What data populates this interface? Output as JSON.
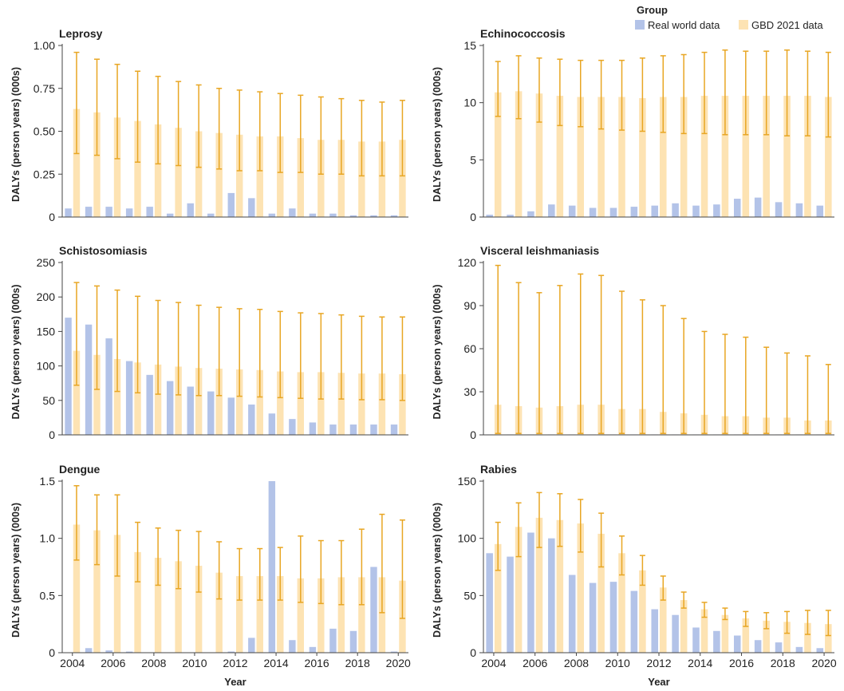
{
  "colors": {
    "real": "#b3c3e8",
    "gbd": "#fde3b3",
    "error": "#e8a623",
    "axis": "#444444"
  },
  "legend": {
    "title": "Group",
    "real_label": "Real world data",
    "gbd_label": "GBD 2021 data"
  },
  "chart_data": [
    {
      "type": "bar",
      "title": "Leprosy",
      "xlabel": "",
      "ylabel": "DALYs (person years) (000s)",
      "ylim": [
        0,
        1.0
      ],
      "yticks": [
        0,
        0.25,
        0.5,
        0.75,
        1.0
      ],
      "ytick_labels": [
        "0",
        "0.25",
        "0.50",
        "0.75",
        "1.00"
      ],
      "categories": [
        2004,
        2005,
        2006,
        2007,
        2008,
        2009,
        2010,
        2011,
        2012,
        2013,
        2014,
        2015,
        2016,
        2017,
        2018,
        2019,
        2020
      ],
      "xtick_labels": [],
      "series": [
        {
          "name": "Real world data",
          "values": [
            0.05,
            0.06,
            0.06,
            0.05,
            0.06,
            0.02,
            0.08,
            0.02,
            0.14,
            0.11,
            0.02,
            0.05,
            0.02,
            0.02,
            0.01,
            0.01,
            0.01
          ]
        },
        {
          "name": "GBD 2021 data",
          "values": [
            0.63,
            0.61,
            0.58,
            0.56,
            0.54,
            0.52,
            0.5,
            0.49,
            0.48,
            0.47,
            0.47,
            0.46,
            0.45,
            0.45,
            0.44,
            0.44,
            0.45
          ],
          "lower": [
            0.37,
            0.36,
            0.34,
            0.32,
            0.31,
            0.3,
            0.29,
            0.28,
            0.27,
            0.27,
            0.26,
            0.26,
            0.25,
            0.25,
            0.24,
            0.24,
            0.24
          ],
          "upper": [
            0.96,
            0.92,
            0.89,
            0.85,
            0.82,
            0.79,
            0.77,
            0.75,
            0.74,
            0.73,
            0.72,
            0.71,
            0.7,
            0.69,
            0.68,
            0.67,
            0.68
          ]
        }
      ]
    },
    {
      "type": "bar",
      "title": "Echinococcosis",
      "xlabel": "",
      "ylabel": "DALYs (person years) (000s)",
      "ylim": [
        0,
        15
      ],
      "yticks": [
        0,
        5,
        10,
        15
      ],
      "ytick_labels": [
        "0",
        "5",
        "10",
        "15"
      ],
      "categories": [
        2004,
        2005,
        2006,
        2007,
        2008,
        2009,
        2010,
        2011,
        2012,
        2013,
        2014,
        2015,
        2016,
        2017,
        2018,
        2019,
        2020
      ],
      "xtick_labels": [],
      "series": [
        {
          "name": "Real world data",
          "values": [
            0.2,
            0.2,
            0.5,
            1.1,
            1.0,
            0.8,
            0.8,
            0.9,
            1.0,
            1.2,
            1.0,
            1.1,
            1.6,
            1.7,
            1.3,
            1.2,
            1.0
          ]
        },
        {
          "name": "GBD 2021 data",
          "values": [
            10.9,
            11.0,
            10.8,
            10.6,
            10.5,
            10.5,
            10.5,
            10.4,
            10.5,
            10.5,
            10.6,
            10.6,
            10.6,
            10.6,
            10.6,
            10.6,
            10.5
          ],
          "lower": [
            8.8,
            8.6,
            8.3,
            8.0,
            7.9,
            7.7,
            7.6,
            7.5,
            7.4,
            7.3,
            7.3,
            7.2,
            7.2,
            7.2,
            7.1,
            7.1,
            7.0
          ],
          "upper": [
            13.6,
            14.1,
            13.9,
            13.8,
            13.7,
            13.7,
            13.7,
            13.9,
            14.1,
            14.2,
            14.4,
            14.6,
            14.5,
            14.5,
            14.6,
            14.5,
            14.4
          ]
        }
      ]
    },
    {
      "type": "bar",
      "title": "Schistosomiasis",
      "xlabel": "",
      "ylabel": "DALYs (person years) (000s)",
      "ylim": [
        0,
        250
      ],
      "yticks": [
        0,
        50,
        100,
        150,
        200,
        250
      ],
      "ytick_labels": [
        "0",
        "50",
        "100",
        "150",
        "200",
        "250"
      ],
      "categories": [
        2004,
        2005,
        2006,
        2007,
        2008,
        2009,
        2010,
        2011,
        2012,
        2013,
        2014,
        2015,
        2016,
        2017,
        2018,
        2019,
        2020
      ],
      "xtick_labels": [],
      "series": [
        {
          "name": "Real world data",
          "values": [
            170,
            160,
            140,
            107,
            87,
            78,
            70,
            63,
            54,
            44,
            31,
            23,
            18,
            15,
            15,
            15,
            15
          ]
        },
        {
          "name": "GBD 2021 data",
          "values": [
            122,
            116,
            110,
            105,
            102,
            99,
            97,
            96,
            95,
            94,
            92,
            91,
            91,
            90,
            89,
            89,
            88
          ],
          "lower": [
            72,
            66,
            63,
            61,
            59,
            58,
            57,
            57,
            56,
            55,
            54,
            53,
            52,
            52,
            51,
            51,
            50
          ],
          "upper": [
            221,
            216,
            210,
            201,
            195,
            192,
            188,
            185,
            183,
            182,
            179,
            177,
            176,
            174,
            172,
            171,
            171
          ]
        }
      ]
    },
    {
      "type": "bar",
      "title": "Visceral leishmaniasis",
      "xlabel": "",
      "ylabel": "DALYs (person years) (000s)",
      "ylim": [
        0,
        120
      ],
      "yticks": [
        0,
        30,
        60,
        90,
        120
      ],
      "ytick_labels": [
        "0",
        "30",
        "60",
        "90",
        "120"
      ],
      "categories": [
        2004,
        2005,
        2006,
        2007,
        2008,
        2009,
        2010,
        2011,
        2012,
        2013,
        2014,
        2015,
        2016,
        2017,
        2018,
        2019,
        2020
      ],
      "xtick_labels": [],
      "series": [
        {
          "name": "Real world data",
          "values": [
            0.3,
            0.3,
            0.3,
            0.3,
            0.3,
            0.3,
            0.3,
            0.3,
            0.3,
            0.3,
            0.3,
            0.3,
            0.3,
            0.3,
            0.3,
            0.3,
            0.3
          ]
        },
        {
          "name": "GBD 2021 data",
          "values": [
            21,
            20,
            19,
            20,
            21,
            21,
            18,
            18,
            16,
            15,
            14,
            13,
            13,
            12,
            12,
            10,
            10
          ],
          "lower": [
            1,
            1,
            1,
            1,
            1,
            1,
            1,
            1,
            1,
            1,
            1,
            1,
            1,
            1,
            1,
            1,
            1
          ],
          "upper": [
            118,
            106,
            99,
            104,
            112,
            111,
            100,
            94,
            90,
            81,
            72,
            70,
            68,
            61,
            57,
            55,
            49
          ]
        }
      ]
    },
    {
      "type": "bar",
      "title": "Dengue",
      "xlabel": "Year",
      "ylabel": "DALYs (person years) (000s)",
      "ylim": [
        0,
        1.5
      ],
      "yticks": [
        0,
        0.5,
        1.0,
        1.5
      ],
      "ytick_labels": [
        "0",
        "0.5",
        "1.0",
        "1.5"
      ],
      "categories": [
        2004,
        2005,
        2006,
        2007,
        2008,
        2009,
        2010,
        2011,
        2012,
        2013,
        2014,
        2015,
        2016,
        2017,
        2018,
        2019,
        2020
      ],
      "xtick_labels": [
        "2004",
        "2006",
        "2008",
        "2010",
        "2012",
        "2014",
        "2016",
        "2018",
        "2020"
      ],
      "series": [
        {
          "name": "Real world data",
          "values": [
            0.0,
            0.04,
            0.02,
            0.01,
            0.0,
            0.0,
            0.0,
            0.0,
            0.01,
            0.13,
            1.5,
            0.11,
            0.05,
            0.21,
            0.19,
            0.75,
            0.01
          ]
        },
        {
          "name": "GBD 2021 data",
          "values": [
            1.12,
            1.07,
            1.03,
            0.88,
            0.83,
            0.8,
            0.76,
            0.7,
            0.67,
            0.67,
            0.67,
            0.65,
            0.65,
            0.66,
            0.66,
            0.66,
            0.63
          ],
          "lower": [
            0.81,
            0.77,
            0.67,
            0.62,
            0.59,
            0.56,
            0.53,
            0.47,
            0.46,
            0.46,
            0.46,
            0.44,
            0.43,
            0.42,
            0.42,
            0.35,
            0.3
          ],
          "upper": [
            1.46,
            1.38,
            1.38,
            1.14,
            1.09,
            1.07,
            1.06,
            0.97,
            0.91,
            0.91,
            0.92,
            1.02,
            0.98,
            0.98,
            1.08,
            1.21,
            1.16
          ]
        }
      ]
    },
    {
      "type": "bar",
      "title": "Rabies",
      "xlabel": "Year",
      "ylabel": "DALYs (person years) (000s)",
      "ylim": [
        0,
        150
      ],
      "yticks": [
        0,
        50,
        100,
        150
      ],
      "ytick_labels": [
        "0",
        "50",
        "100",
        "150"
      ],
      "categories": [
        2004,
        2005,
        2006,
        2007,
        2008,
        2009,
        2010,
        2011,
        2012,
        2013,
        2014,
        2015,
        2016,
        2017,
        2018,
        2019,
        2020
      ],
      "xtick_labels": [
        "2004",
        "2006",
        "2008",
        "2010",
        "2012",
        "2014",
        "2016",
        "2018",
        "2020"
      ],
      "series": [
        {
          "name": "Real world data",
          "values": [
            87,
            84,
            105,
            100,
            68,
            61,
            62,
            54,
            38,
            33,
            22,
            19,
            15,
            11,
            9,
            5,
            4
          ]
        },
        {
          "name": "GBD 2021 data",
          "values": [
            95,
            110,
            118,
            116,
            113,
            104,
            87,
            72,
            57,
            46,
            38,
            33,
            30,
            28,
            27,
            26,
            25
          ],
          "lower": [
            72,
            84,
            92,
            93,
            88,
            75,
            68,
            59,
            46,
            39,
            31,
            29,
            23,
            21,
            17,
            16,
            15
          ],
          "upper": [
            114,
            131,
            140,
            139,
            134,
            122,
            102,
            85,
            67,
            53,
            44,
            39,
            36,
            35,
            36,
            37,
            37
          ]
        }
      ]
    }
  ]
}
